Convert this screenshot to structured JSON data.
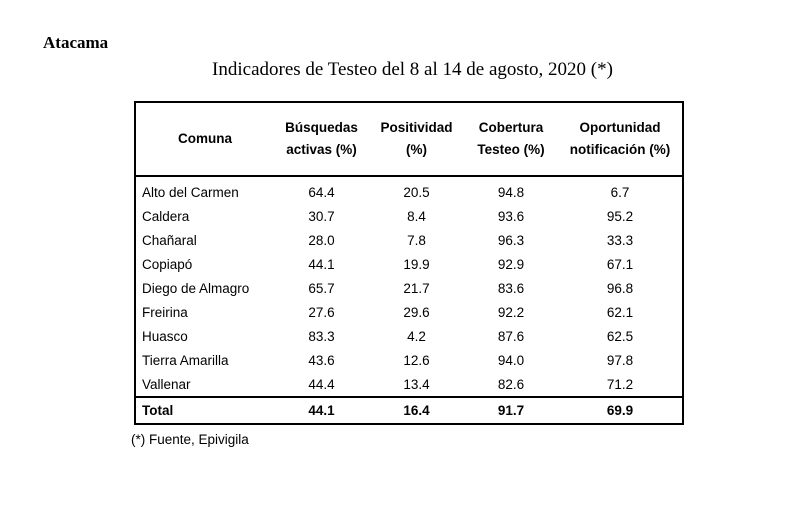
{
  "region": "Atacama",
  "title": "Indicadores de Testeo del 8 al 14 de agosto, 2020 (*)",
  "table": {
    "headers": [
      "Comuna",
      "Búsquedas activas (%)",
      "Positividad (%)",
      "Cobertura Testeo (%)",
      "Oportunidad notificación (%)"
    ],
    "rows": [
      [
        "Alto del Carmen",
        "64.4",
        "20.5",
        "94.8",
        "6.7"
      ],
      [
        "Caldera",
        "30.7",
        "8.4",
        "93.6",
        "95.2"
      ],
      [
        "Chañaral",
        "28.0",
        "7.8",
        "96.3",
        "33.3"
      ],
      [
        "Copiapó",
        "44.1",
        "19.9",
        "92.9",
        "67.1"
      ],
      [
        "Diego de Almagro",
        "65.7",
        "21.7",
        "83.6",
        "96.8"
      ],
      [
        "Freirina",
        "27.6",
        "29.6",
        "92.2",
        "62.1"
      ],
      [
        "Huasco",
        "83.3",
        "4.2",
        "87.6",
        "62.5"
      ],
      [
        "Tierra Amarilla",
        "43.6",
        "12.6",
        "94.0",
        "97.8"
      ],
      [
        "Vallenar",
        "44.4",
        "13.4",
        "82.6",
        "71.2"
      ]
    ],
    "total": [
      "Total",
      "44.1",
      "16.4",
      "91.7",
      "69.9"
    ]
  },
  "footnote": "(*) Fuente, Epivigila"
}
